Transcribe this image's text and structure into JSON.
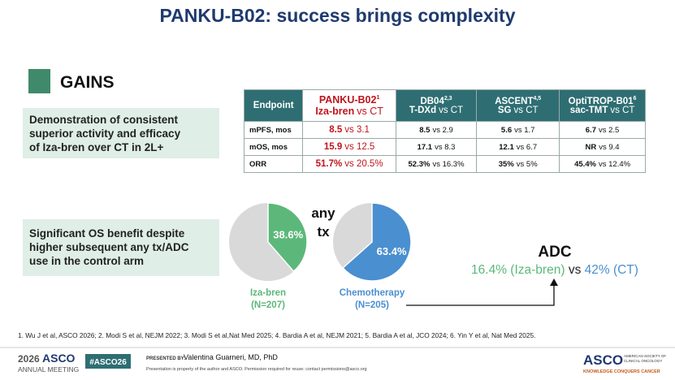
{
  "title": "PANKU-B02: success brings complexity",
  "gains": {
    "heading": "GAINS",
    "point1": [
      "Demonstration of consistent",
      "superior activity and efficacy",
      "of Iza-bren over CT in 2L+"
    ],
    "point2": [
      "Significant OS benefit despite",
      "higher subsequent any tx/ADC",
      "use in the control arm"
    ]
  },
  "table": {
    "header": [
      "Endpoint",
      {
        "l1": "PANKU-B02",
        "sup": "1",
        "l2b": "Iza-bren",
        "l2": "vs CT"
      },
      {
        "l1": "DB04",
        "sup": "2,3",
        "l2b": "T-DXd",
        "l2": "vs CT"
      },
      {
        "l1": "ASCENT",
        "sup": "4,5",
        "l2b": "SG",
        "l2": "vs CT"
      },
      {
        "l1": "OptiTROP-B01",
        "sup": "6",
        "l2b": "sac-TMT",
        "l2": "vs CT"
      }
    ],
    "rows": [
      [
        "mPFS, mos",
        [
          "8.5",
          "vs 3.1"
        ],
        [
          "8.5",
          "vs 2.9"
        ],
        [
          "5.6",
          "vs 1.7"
        ],
        [
          "6.7",
          "vs 2.5"
        ]
      ],
      [
        "mOS, mos",
        [
          "15.9",
          "vs 12.5"
        ],
        [
          "17.1",
          "vs 8.3"
        ],
        [
          "12.1",
          "vs 6.7"
        ],
        [
          "NR",
          "vs 9.4"
        ]
      ],
      [
        "ORR",
        [
          "51.7%",
          "vs 20.5%"
        ],
        [
          "52.3%",
          "vs 16.3%"
        ],
        [
          "35%",
          "vs 5%"
        ],
        [
          "45.4%",
          "vs 12.4%"
        ]
      ]
    ]
  },
  "pies": [
    {
      "label": "Iza-bren",
      "n": "(N=207)",
      "value": 38.6,
      "value_label": "38.6%",
      "color": "#5cb87a"
    },
    {
      "label": "Chemotherapy",
      "n": "(N=205)",
      "value": 63.4,
      "value_label": "63.4%",
      "color": "#4a8fd0"
    }
  ],
  "any_tx": [
    "any",
    "tx"
  ],
  "adc": {
    "heading": "ADC",
    "a": "16.4% (Iza-bren)",
    "vs": "vs",
    "b": "42% (CT)"
  },
  "footnote": "1. Wu J et al, ASCO 2026; 2. Modi S et al, NEJM 2022; 3. Modi S et al,Nat Med 2025; 4. Bardia A et al, NEJM 2021; 5. Bardia A et al, JCO 2024; 6. Yin Y et al, Nat Med 2025.",
  "footer": {
    "year": "2026",
    "asco": "ASCO",
    "meeting": "ANNUAL MEETING",
    "hashtag": "#ASCO26",
    "presented_by": "PRESENTED BY:",
    "presenter": "Valentina Guarneri, MD, PhD",
    "notice": "Presentation is property of the author and ASCO. Permission required for reuse; contact permissions@asco.org",
    "logo": "ASCO",
    "logo_sub1": "AMERICAN SOCIETY OF",
    "logo_sub2": "CLINICAL ONCOLOGY",
    "tagline": "KNOWLEDGE CONQUERS CANCER"
  }
}
